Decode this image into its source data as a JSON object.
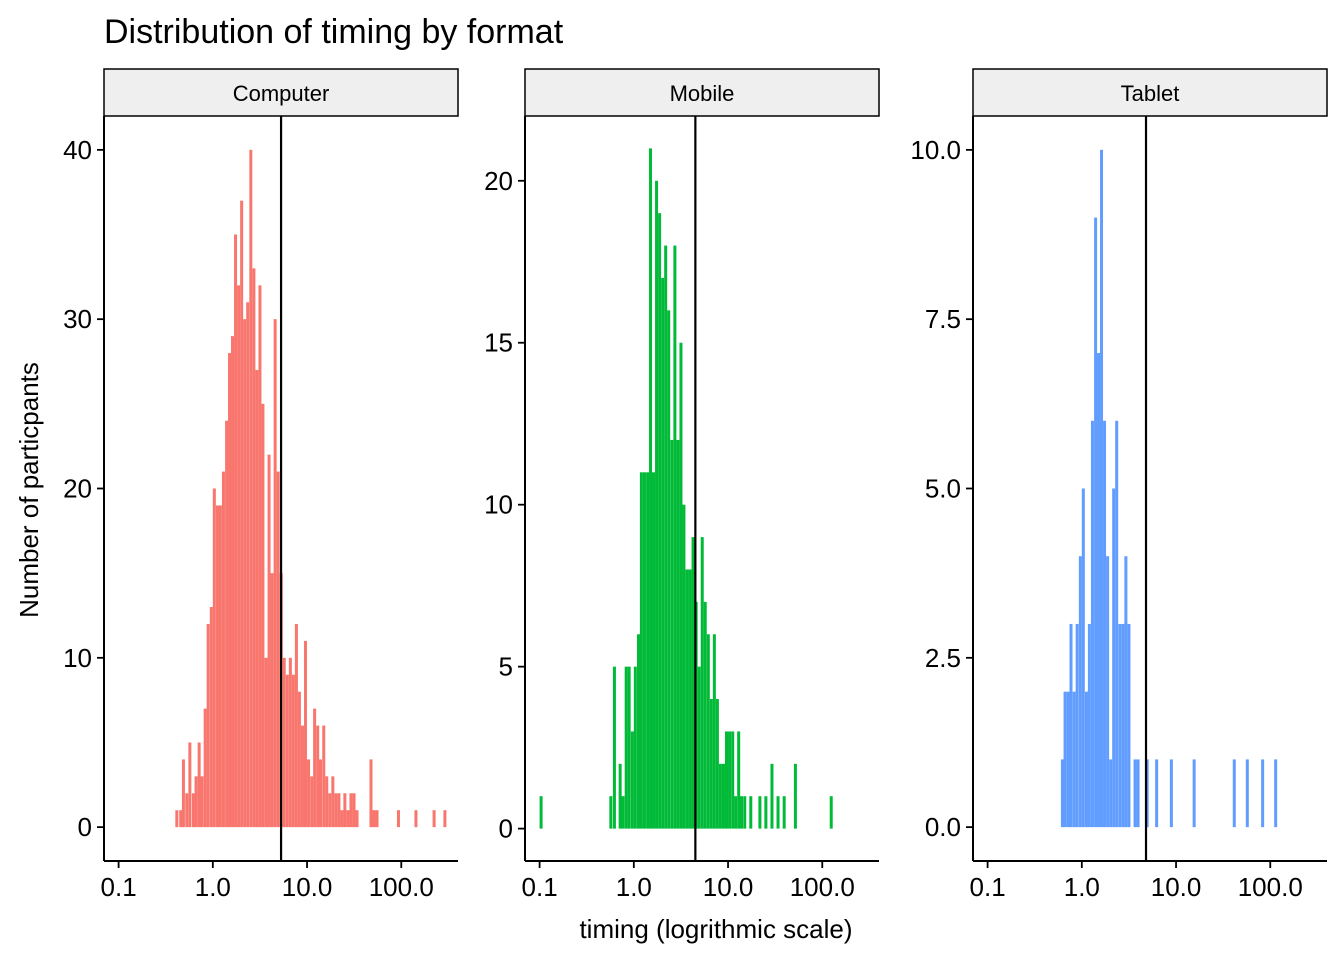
{
  "chart_data": {
    "type": "bar",
    "title": "Distribution of timing by format",
    "xlabel": "timing (logrithmic scale)",
    "ylabel": "Number of particpants",
    "x_scale": "log10",
    "grid": false,
    "legend": "none",
    "x_ticks": [
      "0.1",
      "1.0",
      "10.0",
      "100.0"
    ],
    "x_tick_values": [
      0.1,
      1,
      10,
      100
    ],
    "xlim": [
      0.07,
      400
    ],
    "panels": [
      {
        "name": "Computer",
        "color": "#F8766D",
        "ylim": [
          -2,
          42
        ],
        "y_ticks": [
          0,
          10,
          20,
          30,
          40
        ],
        "y_tick_labels": [
          "0",
          "10",
          "20",
          "30",
          "40"
        ],
        "vline": 5.3,
        "bins": [
          {
            "x": 0.4,
            "y": 1
          },
          {
            "x": 0.44,
            "y": 1
          },
          {
            "x": 0.47,
            "y": 4
          },
          {
            "x": 0.51,
            "y": 2
          },
          {
            "x": 0.55,
            "y": 5
          },
          {
            "x": 0.6,
            "y": 2
          },
          {
            "x": 0.64,
            "y": 3
          },
          {
            "x": 0.69,
            "y": 5
          },
          {
            "x": 0.74,
            "y": 3
          },
          {
            "x": 0.8,
            "y": 7
          },
          {
            "x": 0.86,
            "y": 12
          },
          {
            "x": 0.93,
            "y": 13
          },
          {
            "x": 1.0,
            "y": 20
          },
          {
            "x": 1.08,
            "y": 19
          },
          {
            "x": 1.16,
            "y": 19
          },
          {
            "x": 1.25,
            "y": 21
          },
          {
            "x": 1.35,
            "y": 24
          },
          {
            "x": 1.45,
            "y": 28
          },
          {
            "x": 1.56,
            "y": 29
          },
          {
            "x": 1.68,
            "y": 35
          },
          {
            "x": 1.81,
            "y": 32
          },
          {
            "x": 1.95,
            "y": 37
          },
          {
            "x": 2.1,
            "y": 30
          },
          {
            "x": 2.26,
            "y": 31
          },
          {
            "x": 2.44,
            "y": 40
          },
          {
            "x": 2.63,
            "y": 33
          },
          {
            "x": 2.83,
            "y": 27
          },
          {
            "x": 3.05,
            "y": 32
          },
          {
            "x": 3.28,
            "y": 25
          },
          {
            "x": 3.54,
            "y": 10
          },
          {
            "x": 3.81,
            "y": 22
          },
          {
            "x": 4.1,
            "y": 15
          },
          {
            "x": 4.42,
            "y": 30
          },
          {
            "x": 4.76,
            "y": 21
          },
          {
            "x": 5.13,
            "y": 15
          },
          {
            "x": 5.52,
            "y": 10
          },
          {
            "x": 5.95,
            "y": 9
          },
          {
            "x": 6.41,
            "y": 10
          },
          {
            "x": 6.9,
            "y": 9
          },
          {
            "x": 7.43,
            "y": 12
          },
          {
            "x": 8.0,
            "y": 8
          },
          {
            "x": 8.62,
            "y": 6
          },
          {
            "x": 9.28,
            "y": 11
          },
          {
            "x": 10.0,
            "y": 4
          },
          {
            "x": 10.8,
            "y": 3
          },
          {
            "x": 11.6,
            "y": 7
          },
          {
            "x": 12.5,
            "y": 6
          },
          {
            "x": 13.4,
            "y": 4
          },
          {
            "x": 14.5,
            "y": 6
          },
          {
            "x": 15.6,
            "y": 3
          },
          {
            "x": 16.8,
            "y": 2
          },
          {
            "x": 18.1,
            "y": 3
          },
          {
            "x": 19.5,
            "y": 2
          },
          {
            "x": 21.0,
            "y": 2
          },
          {
            "x": 22.6,
            "y": 1
          },
          {
            "x": 24.3,
            "y": 2
          },
          {
            "x": 26.2,
            "y": 1
          },
          {
            "x": 28.2,
            "y": 2
          },
          {
            "x": 30.4,
            "y": 2
          },
          {
            "x": 32.7,
            "y": 1
          },
          {
            "x": 46.0,
            "y": 4
          },
          {
            "x": 49.5,
            "y": 1
          },
          {
            "x": 53.3,
            "y": 1
          },
          {
            "x": 90.0,
            "y": 1
          },
          {
            "x": 138.0,
            "y": 1
          },
          {
            "x": 215.0,
            "y": 1
          },
          {
            "x": 280.0,
            "y": 1
          }
        ]
      },
      {
        "name": "Mobile",
        "color": "#00BA38",
        "ylim": [
          -1,
          22
        ],
        "y_ticks": [
          0,
          5,
          10,
          15,
          20
        ],
        "y_tick_labels": [
          "0",
          "5",
          "10",
          "15",
          "20"
        ],
        "vline": 4.5,
        "bins": [
          {
            "x": 0.1,
            "y": 1
          },
          {
            "x": 0.55,
            "y": 1
          },
          {
            "x": 0.6,
            "y": 5
          },
          {
            "x": 0.69,
            "y": 2
          },
          {
            "x": 0.74,
            "y": 1
          },
          {
            "x": 0.8,
            "y": 5
          },
          {
            "x": 0.86,
            "y": 5
          },
          {
            "x": 0.93,
            "y": 3
          },
          {
            "x": 1.0,
            "y": 5
          },
          {
            "x": 1.08,
            "y": 6
          },
          {
            "x": 1.16,
            "y": 11
          },
          {
            "x": 1.25,
            "y": 11
          },
          {
            "x": 1.35,
            "y": 11
          },
          {
            "x": 1.45,
            "y": 21
          },
          {
            "x": 1.56,
            "y": 11
          },
          {
            "x": 1.68,
            "y": 20
          },
          {
            "x": 1.81,
            "y": 19
          },
          {
            "x": 1.95,
            "y": 17
          },
          {
            "x": 2.1,
            "y": 18
          },
          {
            "x": 2.26,
            "y": 16
          },
          {
            "x": 2.44,
            "y": 12
          },
          {
            "x": 2.63,
            "y": 18
          },
          {
            "x": 2.83,
            "y": 12
          },
          {
            "x": 3.05,
            "y": 15
          },
          {
            "x": 3.28,
            "y": 10
          },
          {
            "x": 3.54,
            "y": 8
          },
          {
            "x": 3.81,
            "y": 8
          },
          {
            "x": 4.1,
            "y": 9
          },
          {
            "x": 4.42,
            "y": 7
          },
          {
            "x": 4.76,
            "y": 5
          },
          {
            "x": 5.13,
            "y": 9
          },
          {
            "x": 5.52,
            "y": 7
          },
          {
            "x": 5.95,
            "y": 6
          },
          {
            "x": 6.41,
            "y": 4
          },
          {
            "x": 6.9,
            "y": 6
          },
          {
            "x": 7.43,
            "y": 4
          },
          {
            "x": 8.0,
            "y": 2
          },
          {
            "x": 8.62,
            "y": 2
          },
          {
            "x": 9.28,
            "y": 3
          },
          {
            "x": 10.0,
            "y": 3
          },
          {
            "x": 10.8,
            "y": 3
          },
          {
            "x": 11.6,
            "y": 1
          },
          {
            "x": 12.5,
            "y": 3
          },
          {
            "x": 13.4,
            "y": 1
          },
          {
            "x": 14.5,
            "y": 1
          },
          {
            "x": 16.8,
            "y": 1
          },
          {
            "x": 21.0,
            "y": 1
          },
          {
            "x": 24.3,
            "y": 1
          },
          {
            "x": 28.2,
            "y": 2
          },
          {
            "x": 32.7,
            "y": 1
          },
          {
            "x": 38.0,
            "y": 1
          },
          {
            "x": 50.0,
            "y": 2
          },
          {
            "x": 120.0,
            "y": 1
          }
        ]
      },
      {
        "name": "Tablet",
        "color": "#619CFF",
        "ylim": [
          -0.5,
          10.5
        ],
        "y_ticks": [
          0,
          2.5,
          5,
          7.5,
          10
        ],
        "y_tick_labels": [
          "0.0",
          "2.5",
          "5.0",
          "7.5",
          "10.0"
        ],
        "vline": 4.8,
        "bins": [
          {
            "x": 0.6,
            "y": 1
          },
          {
            "x": 0.64,
            "y": 2
          },
          {
            "x": 0.69,
            "y": 2
          },
          {
            "x": 0.74,
            "y": 3
          },
          {
            "x": 0.8,
            "y": 2
          },
          {
            "x": 0.86,
            "y": 3
          },
          {
            "x": 0.93,
            "y": 4
          },
          {
            "x": 1.0,
            "y": 5
          },
          {
            "x": 1.08,
            "y": 2
          },
          {
            "x": 1.16,
            "y": 3
          },
          {
            "x": 1.25,
            "y": 6
          },
          {
            "x": 1.35,
            "y": 9
          },
          {
            "x": 1.45,
            "y": 7
          },
          {
            "x": 1.56,
            "y": 10
          },
          {
            "x": 1.68,
            "y": 6
          },
          {
            "x": 1.81,
            "y": 4
          },
          {
            "x": 1.95,
            "y": 1
          },
          {
            "x": 2.1,
            "y": 5
          },
          {
            "x": 2.26,
            "y": 6
          },
          {
            "x": 2.44,
            "y": 3
          },
          {
            "x": 2.63,
            "y": 3
          },
          {
            "x": 2.83,
            "y": 4
          },
          {
            "x": 3.05,
            "y": 3
          },
          {
            "x": 3.54,
            "y": 1
          },
          {
            "x": 3.81,
            "y": 1
          },
          {
            "x": 4.76,
            "y": 1
          },
          {
            "x": 6.0,
            "y": 1
          },
          {
            "x": 8.6,
            "y": 1
          },
          {
            "x": 15.0,
            "y": 1
          },
          {
            "x": 40.0,
            "y": 1
          },
          {
            "x": 55.0,
            "y": 1
          },
          {
            "x": 80.0,
            "y": 1
          },
          {
            "x": 110.0,
            "y": 1
          }
        ]
      }
    ]
  }
}
